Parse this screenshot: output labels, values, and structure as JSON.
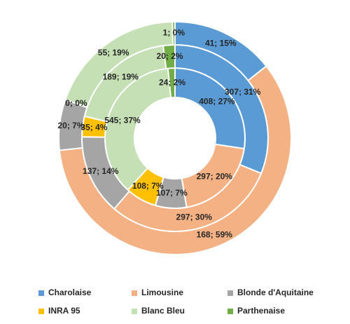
{
  "chart_data": {
    "type": "pie",
    "categories": [
      "Charolaise",
      "Limousine",
      "Blonde d'Aquitaine",
      "INRA 95",
      "Blanc Bleu",
      "Parthenaise"
    ],
    "colors": [
      "#5b9bd5",
      "#f4b183",
      "#a5a5a5",
      "#ffc000",
      "#c5e0b4",
      "#70ad47"
    ],
    "rings": [
      {
        "values": [
          408,
          297,
          107,
          108,
          545,
          24
        ],
        "value_labels": [
          "408; 27%",
          "297; 20%",
          "107; 7%",
          "108; 7%",
          "545; 37%",
          "24; 2%"
        ]
      },
      {
        "values": [
          307,
          297,
          137,
          35,
          189,
          20
        ],
        "value_labels": [
          "307; 31%",
          "297; 30%",
          "137; 14%",
          "35; 4%",
          "189; 19%",
          "20; 2%"
        ]
      },
      {
        "values": [
          41,
          168,
          20,
          0,
          55,
          1
        ],
        "value_labels": [
          "41; 15%",
          "168; 59%",
          "20; 7%",
          "0; 0%",
          "55; 19%",
          "1; 0%"
        ]
      }
    ],
    "legend": "bottom"
  }
}
